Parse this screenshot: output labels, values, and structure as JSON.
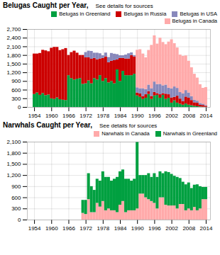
{
  "chart_data": [
    {
      "type": "bar",
      "stacked": true,
      "title": "Belugas Caught per Year,",
      "subtitle": "See details for sources",
      "x": [
        1954,
        1955,
        1956,
        1957,
        1958,
        1959,
        1960,
        1961,
        1962,
        1963,
        1964,
        1965,
        1966,
        1967,
        1968,
        1969,
        1970,
        1971,
        1972,
        1973,
        1974,
        1975,
        1976,
        1977,
        1978,
        1979,
        1980,
        1981,
        1982,
        1983,
        1984,
        1985,
        1986,
        1987,
        1988,
        1989,
        1990,
        1991,
        1992,
        1993,
        1994,
        1995,
        1996,
        1997,
        1998,
        1999,
        2000,
        2001,
        2002,
        2003,
        2004,
        2005,
        2006,
        2007,
        2008,
        2009,
        2010,
        2011,
        2012,
        2013,
        2014
      ],
      "series": [
        {
          "name": "Belugas in Greenland",
          "color": "#00a040",
          "values": [
            450,
            500,
            420,
            480,
            410,
            430,
            300,
            280,
            330,
            270,
            250,
            240,
            1100,
            1000,
            950,
            980,
            1000,
            800,
            820,
            920,
            820,
            1000,
            950,
            1100,
            900,
            1000,
            850,
            900,
            820,
            1300,
            900,
            1250,
            1100,
            1100,
            1100,
            1150,
            400,
            350,
            280,
            320,
            450,
            280,
            400,
            420,
            320,
            420,
            280,
            320,
            150,
            230,
            150,
            110,
            80,
            120,
            80,
            60,
            40,
            25,
            15,
            8,
            4
          ]
        },
        {
          "name": "Belugas in Russia",
          "color": "#cc0000",
          "values": [
            1400,
            1350,
            1450,
            1500,
            1550,
            1500,
            1750,
            1800,
            1750,
            1700,
            1750,
            1800,
            700,
            900,
            1000,
            900,
            800,
            1000,
            900,
            800,
            850,
            700,
            700,
            580,
            800,
            750,
            700,
            700,
            800,
            350,
            800,
            450,
            580,
            580,
            700,
            600,
            100,
            120,
            100,
            120,
            100,
            100,
            120,
            60,
            120,
            60,
            180,
            120,
            180,
            120,
            240,
            180,
            120,
            240,
            240,
            180,
            120,
            120,
            60,
            60,
            36
          ]
        },
        {
          "name": "Belugas in USA",
          "color": "#8888bb",
          "values": [
            0,
            0,
            0,
            0,
            0,
            0,
            0,
            0,
            0,
            0,
            0,
            0,
            0,
            0,
            0,
            0,
            0,
            0,
            180,
            230,
            270,
            180,
            230,
            180,
            90,
            135,
            180,
            270,
            225,
            180,
            90,
            90,
            135,
            180,
            90,
            45,
            180,
            180,
            270,
            180,
            225,
            270,
            360,
            315,
            360,
            270,
            315,
            225,
            315,
            360,
            270,
            225,
            270,
            225,
            180,
            135,
            90,
            72,
            63,
            45,
            27
          ]
        },
        {
          "name": "Belugas in Canada",
          "color": "#ffaaaa",
          "values": [
            0,
            0,
            0,
            0,
            0,
            0,
            0,
            0,
            0,
            0,
            0,
            0,
            0,
            0,
            0,
            0,
            0,
            0,
            0,
            0,
            0,
            0,
            0,
            0,
            0,
            0,
            0,
            0,
            0,
            0,
            0,
            0,
            0,
            0,
            0,
            0,
            1300,
            1350,
            1200,
            1100,
            1200,
            1500,
            1600,
            1400,
            1600,
            1500,
            1400,
            1600,
            1700,
            1500,
            1400,
            1300,
            1300,
            1200,
            1100,
            1000,
            900,
            800,
            650,
            550,
            620
          ]
        }
      ],
      "xlim": [
        1951.5,
        2015.5
      ],
      "xticks": [
        1954,
        1960,
        1966,
        1972,
        1978,
        1984,
        1990,
        1996,
        2002,
        2008,
        2014
      ],
      "ylim": [
        0,
        2700
      ],
      "yticks": [
        0,
        300,
        600,
        900,
        {
          "value": 1200,
          "label": "1,200"
        },
        {
          "value": 1500,
          "label": "1,500"
        },
        {
          "value": 1800,
          "label": "1,800"
        },
        {
          "value": 2100,
          "label": "2,100"
        },
        {
          "value": 2400,
          "label": "2,400"
        },
        {
          "value": 2700,
          "label": "2,700"
        }
      ],
      "grid": true,
      "legend": "upper right"
    },
    {
      "type": "bar",
      "stacked": true,
      "title": "Narwhals Caught per Year,",
      "subtitle": "See details for sources",
      "x": [
        1954,
        1955,
        1956,
        1957,
        1958,
        1959,
        1960,
        1961,
        1962,
        1963,
        1964,
        1965,
        1966,
        1967,
        1968,
        1969,
        1970,
        1971,
        1972,
        1973,
        1974,
        1975,
        1976,
        1977,
        1978,
        1979,
        1980,
        1981,
        1982,
        1983,
        1984,
        1985,
        1986,
        1987,
        1988,
        1989,
        1990,
        1991,
        1992,
        1993,
        1994,
        1995,
        1996,
        1997,
        1998,
        1999,
        2000,
        2001,
        2002,
        2003,
        2004,
        2005,
        2006,
        2007,
        2008,
        2009,
        2010,
        2011,
        2012,
        2013,
        2014
      ],
      "series": [
        {
          "name": "Narwhals in Canada",
          "color": "#ffaaaa",
          "values": [
            0,
            0,
            0,
            0,
            0,
            0,
            0,
            0,
            0,
            0,
            0,
            0,
            0,
            0,
            0,
            0,
            0,
            180,
            150,
            550,
            200,
            200,
            450,
            350,
            500,
            250,
            300,
            250,
            250,
            200,
            400,
            500,
            200,
            250,
            250,
            250,
            300,
            700,
            700,
            600,
            550,
            500,
            450,
            300,
            600,
            600,
            400,
            380,
            380,
            380,
            300,
            420,
            420,
            250,
            300,
            250,
            340,
            250,
            300,
            550,
            550
          ]
        },
        {
          "name": "Narwhals in Greenland",
          "color": "#00a040",
          "values": [
            0,
            0,
            0,
            0,
            0,
            0,
            0,
            0,
            0,
            0,
            0,
            0,
            0,
            0,
            0,
            0,
            0,
            350,
            380,
            700,
            700,
            600,
            650,
            700,
            800,
            900,
            850,
            800,
            850,
            950,
            900,
            850,
            900,
            850,
            800,
            850,
            1800,
            500,
            500,
            600,
            700,
            650,
            800,
            850,
            700,
            650,
            900,
            900,
            850,
            800,
            850,
            700,
            600,
            700,
            700,
            600,
            600,
            700,
            600,
            330,
            330
          ]
        }
      ],
      "xlim": [
        1951.5,
        2015.5
      ],
      "xticks": [
        1954,
        1960,
        1966,
        1972,
        1978,
        1984,
        1990,
        1996,
        2002,
        2008,
        2014
      ],
      "ylim": [
        0,
        2100
      ],
      "yticks": [
        0,
        300,
        600,
        900,
        {
          "value": 1200,
          "label": "1,200"
        },
        {
          "value": 1500,
          "label": "1,500"
        },
        {
          "value": 1800,
          "label": "1,800"
        },
        {
          "value": 2100,
          "label": "2,100"
        }
      ],
      "grid": true,
      "legend": "upper right"
    }
  ]
}
